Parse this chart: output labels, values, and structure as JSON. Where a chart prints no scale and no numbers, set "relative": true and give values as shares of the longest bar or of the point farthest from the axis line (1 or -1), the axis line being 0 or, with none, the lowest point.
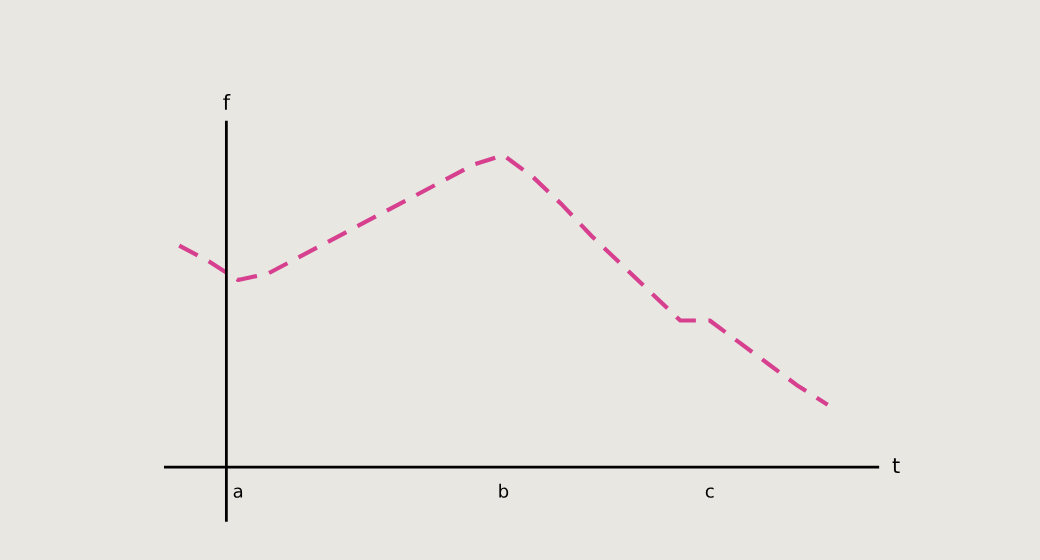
{
  "chart_data": {
    "type": "line",
    "relative": true,
    "xlabel": "t",
    "ylabel": "f",
    "categories": [
      null,
      null,
      "a",
      null,
      null,
      null,
      null,
      null,
      null,
      null,
      null,
      "b",
      null,
      null,
      null,
      null,
      null,
      null,
      "c",
      null,
      null,
      null,
      null
    ],
    "series": [
      {
        "color": "#d6408f",
        "values": [
          0.71,
          0.66,
          0.6,
          0.62,
          0.67,
          0.72,
          0.77,
          0.82,
          0.87,
          0.92,
          0.97,
          1.0,
          0.93,
          0.84,
          0.74,
          0.65,
          0.56,
          0.47,
          0.47,
          0.4,
          0.33,
          0.26,
          0.2
        ]
      }
    ],
    "line_style": "dashed",
    "marker": "none",
    "grid": false,
    "legend": false
  }
}
